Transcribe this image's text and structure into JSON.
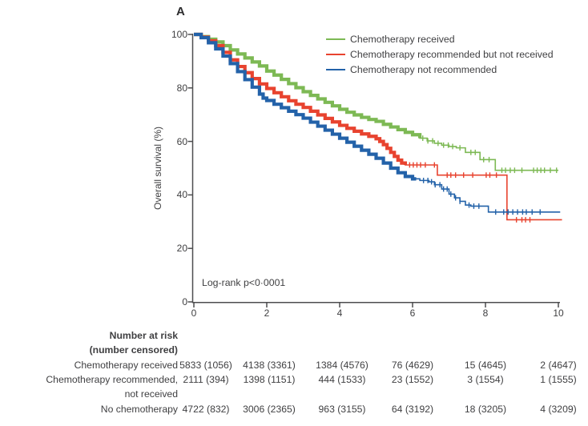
{
  "chart_data": {
    "type": "line",
    "subtype": "kaplan-meier-survival",
    "title": "A",
    "ylabel": "Overall survival (%)",
    "xlabel": "",
    "xlim": [
      0,
      10
    ],
    "ylim": [
      0,
      100
    ],
    "xticks": [
      0,
      2,
      4,
      6,
      8,
      10
    ],
    "yticks": [
      0,
      20,
      40,
      60,
      80,
      100
    ],
    "grid": false,
    "legend_position": "top-right",
    "annotation": "Log-rank p<0·0001",
    "axis_color": "#4d4d4f",
    "series": [
      {
        "name": "Chemotherapy received",
        "color": "#7db954",
        "dense_until": 6.2,
        "points": [
          [
            0,
            100
          ],
          [
            0.2,
            99.2
          ],
          [
            0.4,
            98.2
          ],
          [
            0.6,
            97.2
          ],
          [
            0.8,
            95.8
          ],
          [
            1,
            94.2
          ],
          [
            1.2,
            92.7
          ],
          [
            1.4,
            91.2
          ],
          [
            1.6,
            89.7
          ],
          [
            1.8,
            88.2
          ],
          [
            2,
            86.3
          ],
          [
            2.2,
            84.8
          ],
          [
            2.4,
            83.2
          ],
          [
            2.6,
            81.6
          ],
          [
            2.8,
            80.1
          ],
          [
            3,
            78.6
          ],
          [
            3.2,
            77.2
          ],
          [
            3.4,
            75.9
          ],
          [
            3.6,
            74.6
          ],
          [
            3.8,
            73.3
          ],
          [
            4,
            72
          ],
          [
            4.2,
            70.9
          ],
          [
            4.4,
            69.9
          ],
          [
            4.6,
            69
          ],
          [
            4.8,
            68.2
          ],
          [
            5,
            67.5
          ],
          [
            5.2,
            66.4
          ],
          [
            5.4,
            65.4
          ],
          [
            5.6,
            64.4
          ],
          [
            5.8,
            63.4
          ],
          [
            6,
            62.5
          ],
          [
            6.2,
            61.2
          ],
          [
            6.4,
            60.2
          ],
          [
            6.6,
            59.3
          ],
          [
            6.8,
            58.6
          ],
          [
            7,
            58.1
          ],
          [
            7.2,
            57.6
          ],
          [
            7.45,
            55.9
          ],
          [
            7.85,
            53.2
          ],
          [
            8.27,
            49.2
          ],
          [
            10,
            49.2
          ]
        ],
        "censor_marks": [
          6.28,
          6.42,
          6.55,
          6.7,
          6.85,
          6.98,
          7.1,
          7.3,
          7.6,
          7.72,
          7.95,
          8.1,
          8.45,
          8.55,
          8.68,
          8.8,
          9.0,
          9.32,
          9.42,
          9.52,
          9.62,
          9.78,
          9.95
        ]
      },
      {
        "name": "Chemotherapy recommended but not received",
        "color": "#e8432f",
        "dense_until": 5.8,
        "points": [
          [
            0,
            100
          ],
          [
            0.2,
            99
          ],
          [
            0.4,
            97.6
          ],
          [
            0.6,
            95.8
          ],
          [
            0.8,
            93.3
          ],
          [
            1,
            90.5
          ],
          [
            1.2,
            88
          ],
          [
            1.4,
            85.7
          ],
          [
            1.6,
            83.5
          ],
          [
            1.8,
            81.5
          ],
          [
            2,
            79.8
          ],
          [
            2.2,
            78.2
          ],
          [
            2.4,
            76.7
          ],
          [
            2.6,
            75.2
          ],
          [
            2.8,
            73.9
          ],
          [
            3,
            72.7
          ],
          [
            3.2,
            71.3
          ],
          [
            3.4,
            69.9
          ],
          [
            3.6,
            68.6
          ],
          [
            3.8,
            67.3
          ],
          [
            4,
            66
          ],
          [
            4.2,
            64.9
          ],
          [
            4.4,
            63.8
          ],
          [
            4.6,
            62.8
          ],
          [
            4.8,
            61.9
          ],
          [
            5,
            61
          ],
          [
            5.1,
            60
          ],
          [
            5.2,
            58.8
          ],
          [
            5.3,
            57.4
          ],
          [
            5.4,
            55.9
          ],
          [
            5.5,
            54.4
          ],
          [
            5.6,
            53
          ],
          [
            5.7,
            51.9
          ],
          [
            5.8,
            51.2
          ],
          [
            6.68,
            47.4
          ],
          [
            8.59,
            30.7
          ],
          [
            10.1,
            30.7
          ]
        ],
        "censor_marks": [
          5.92,
          6.02,
          6.12,
          6.22,
          6.35,
          6.6,
          6.95,
          7.05,
          7.18,
          7.4,
          7.65,
          8.02,
          8.12,
          8.3,
          8.85,
          9.0,
          9.1,
          9.22
        ]
      },
      {
        "name": "Chemotherapy not recommended",
        "color": "#2362a9",
        "dense_until": 6.1,
        "points": [
          [
            0,
            100
          ],
          [
            0.2,
            98.8
          ],
          [
            0.4,
            96.9
          ],
          [
            0.6,
            94.6
          ],
          [
            0.8,
            91.9
          ],
          [
            1,
            89.1
          ],
          [
            1.2,
            86.1
          ],
          [
            1.4,
            83.1
          ],
          [
            1.6,
            80.3
          ],
          [
            1.8,
            77.7
          ],
          [
            1.9,
            76.2
          ],
          [
            2,
            75.3
          ],
          [
            2.2,
            73.9
          ],
          [
            2.4,
            72.6
          ],
          [
            2.6,
            71.3
          ],
          [
            2.8,
            70
          ],
          [
            3,
            68.7
          ],
          [
            3.2,
            67.2
          ],
          [
            3.4,
            65.7
          ],
          [
            3.6,
            64.2
          ],
          [
            3.8,
            62.7
          ],
          [
            4,
            61.2
          ],
          [
            4.2,
            59.7
          ],
          [
            4.4,
            58.2
          ],
          [
            4.6,
            56.7
          ],
          [
            4.8,
            55.2
          ],
          [
            5,
            53.7
          ],
          [
            5.2,
            51.9
          ],
          [
            5.4,
            50
          ],
          [
            5.6,
            48.3
          ],
          [
            5.8,
            46.9
          ],
          [
            6,
            46
          ],
          [
            6.2,
            45.4
          ],
          [
            6.45,
            44.9
          ],
          [
            6.6,
            43.8
          ],
          [
            6.8,
            42.2
          ],
          [
            7,
            40.3
          ],
          [
            7.15,
            38.9
          ],
          [
            7.3,
            37.6
          ],
          [
            7.45,
            36.2
          ],
          [
            7.6,
            35.8
          ],
          [
            8.08,
            33.6
          ],
          [
            10.05,
            33.6
          ]
        ],
        "censor_marks": [
          6.3,
          6.42,
          6.52,
          6.62,
          6.75,
          6.85,
          6.95,
          7.05,
          7.18,
          7.3,
          7.55,
          7.68,
          7.82,
          8.28,
          8.5,
          8.62,
          8.75,
          8.88,
          9.02,
          9.12,
          9.28,
          9.5
        ]
      }
    ],
    "risk_table": {
      "title_lines": [
        "Number at risk",
        "(number censored)"
      ],
      "rows": [
        {
          "label_lines": [
            "Chemotherapy received"
          ],
          "values": [
            "5833 (1056)",
            "4138 (3361)",
            "1384 (4576)",
            "76 (4629)",
            "15 (4645)",
            "2 (4647)"
          ]
        },
        {
          "label_lines": [
            "Chemotherapy recommended,",
            "not received"
          ],
          "values": [
            "2111 (394)",
            "1398 (1151)",
            "444 (1533)",
            "23 (1552)",
            "3 (1554)",
            "1 (1555)"
          ]
        },
        {
          "label_lines": [
            "No chemotherapy"
          ],
          "values": [
            "4722 (832)",
            "3006 (2365)",
            "963 (3155)",
            "64 (3192)",
            "18 (3205)",
            "4 (3209)"
          ]
        }
      ]
    }
  }
}
